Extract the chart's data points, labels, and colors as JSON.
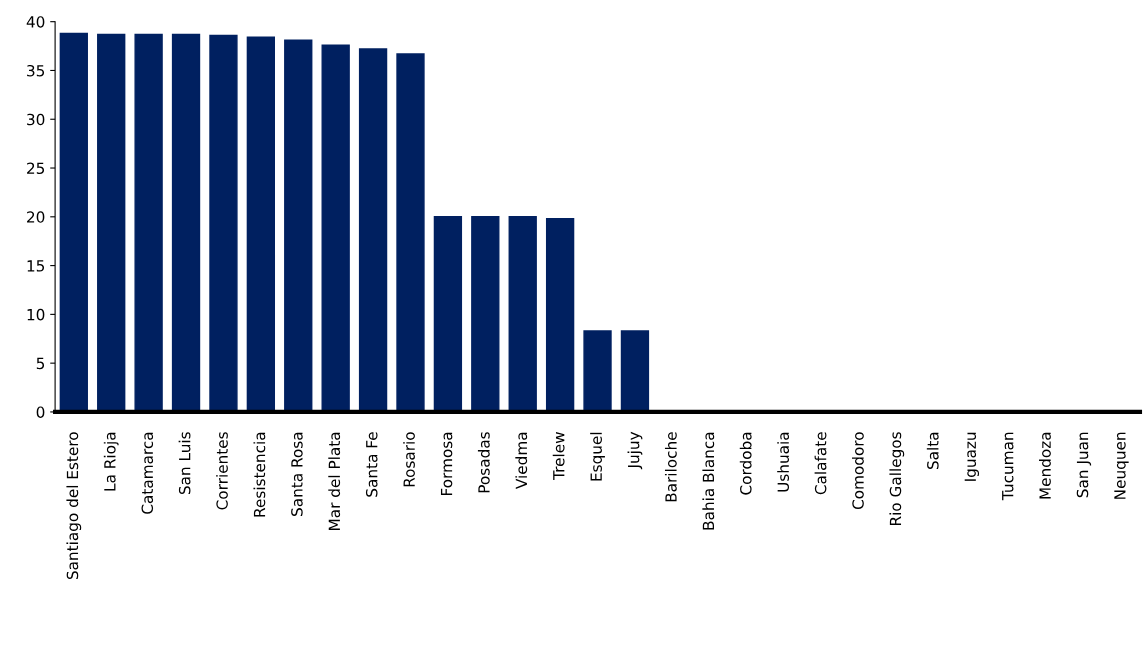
{
  "chart_data": {
    "type": "bar",
    "categories": [
      "Santiago del Estero",
      "La Rioja",
      "Catamarca",
      "San Luis",
      "Corrientes",
      "Resistencia",
      "Santa Rosa",
      "Mar del Plata",
      "Santa Fe",
      "Rosario",
      "Formosa",
      "Posadas",
      "Viedma",
      "Trelew",
      "Esquel",
      "Jujuy",
      "Bariloche",
      "Bahia Blanca",
      "Cordoba",
      "Ushuaia",
      "Calafate",
      "Comodoro",
      "Rio Gallegos",
      "Salta",
      "Iguazu",
      "Tucuman",
      "Mendoza",
      "San Juan",
      "Neuquen"
    ],
    "values": [
      38.8,
      38.7,
      38.7,
      38.7,
      38.6,
      38.4,
      38.1,
      37.6,
      37.2,
      36.7,
      20.0,
      20.0,
      20.0,
      19.8,
      8.3,
      8.3,
      0,
      0,
      0,
      0,
      0,
      0,
      0,
      0,
      0,
      0,
      0,
      0,
      0
    ],
    "color": "#002060",
    "ylim": [
      0,
      40
    ],
    "yticks": [
      0,
      5,
      10,
      15,
      20,
      25,
      30,
      35,
      40
    ],
    "grid": false
  }
}
